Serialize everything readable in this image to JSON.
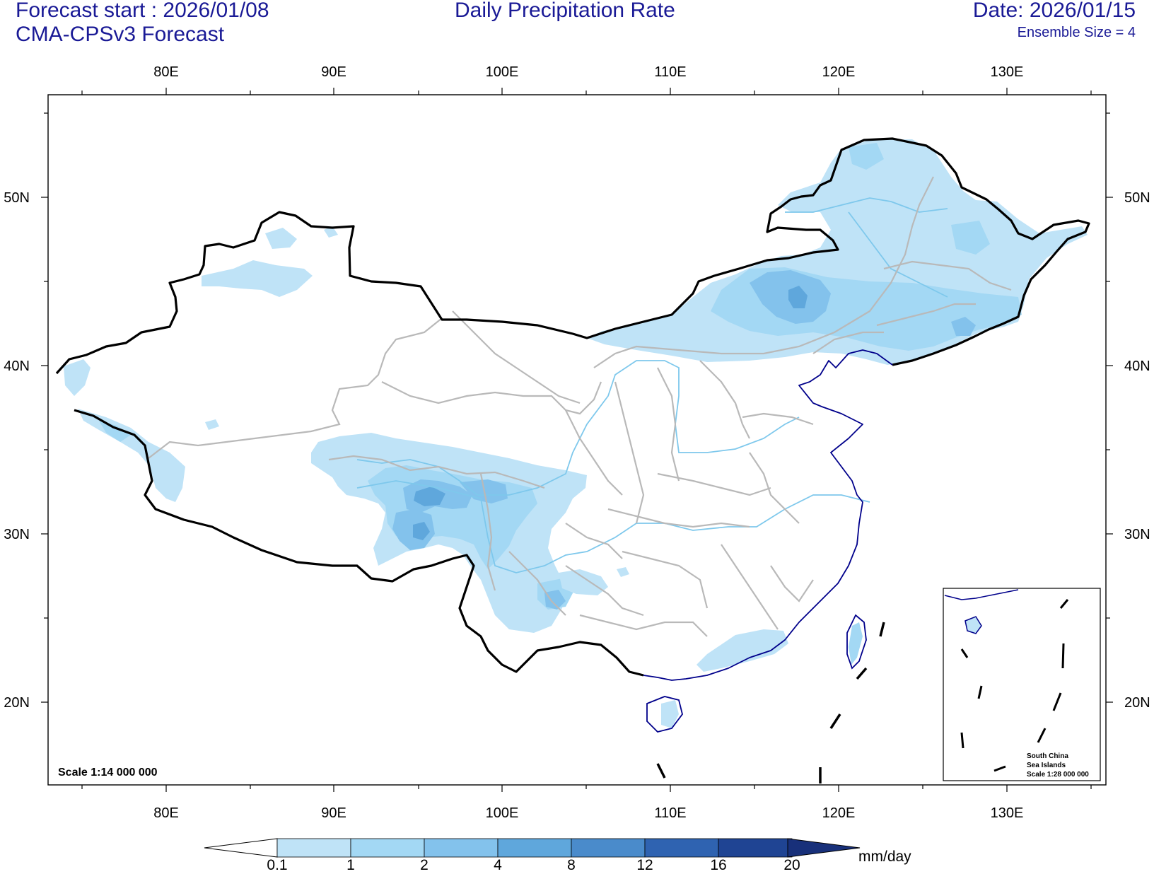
{
  "header": {
    "forecast_start": "Forecast start : 2026/01/08",
    "model": "CMA-CPSv3 Forecast",
    "title": "Daily Precipitation Rate",
    "date": "Date: 2026/01/15",
    "ensemble": "Ensemble Size = 4"
  },
  "axes": {
    "lon_labels": [
      "80E",
      "90E",
      "100E",
      "110E",
      "120E",
      "130E"
    ],
    "lat_labels": [
      "50N",
      "40N",
      "30N",
      "20N"
    ]
  },
  "map": {
    "scale": "Scale 1:14 000 000",
    "inset": {
      "line1": "South China",
      "line2": "Sea Islands",
      "line3": "Scale 1:28 000 000"
    }
  },
  "colorbar": {
    "unit": "mm/day",
    "levels": [
      "0.1",
      "1",
      "2",
      "4",
      "8",
      "12",
      "16",
      "20"
    ],
    "colors": [
      "#bfe3f7",
      "#a3d8f4",
      "#83c2ec",
      "#5fa7dc",
      "#4a8bcb",
      "#2f63b1",
      "#1f4493",
      "#18307a"
    ]
  },
  "colors": {
    "national_border": "#000000",
    "province_border": "#b9b9b9",
    "rivers": "#7ec8ec",
    "coastline": "#00008b",
    "text": "#1a1a96"
  }
}
